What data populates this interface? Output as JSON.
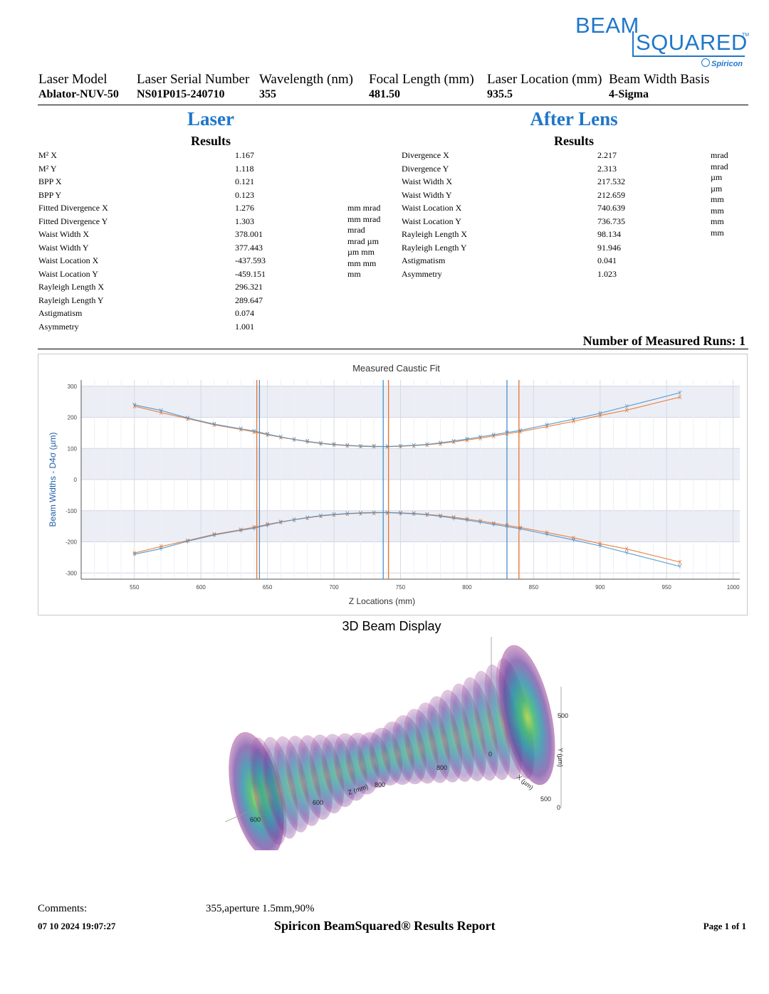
{
  "logo": {
    "line1": "BEAM",
    "line2": "SQUARED",
    "tm": "TM",
    "brand": "Spiricon"
  },
  "header": {
    "fields": [
      {
        "label": "Laser Model",
        "value": "Ablator-NUV-50"
      },
      {
        "label": "Laser Serial Number",
        "value": "NS01P015-240710"
      },
      {
        "label": "Wavelength (nm)",
        "value": "355"
      },
      {
        "label": "Focal Length (mm)",
        "value": "481.50"
      },
      {
        "label": "Laser Location (mm)",
        "value": "935.5"
      },
      {
        "label": "Beam Width Basis",
        "value": "4-Sigma"
      }
    ]
  },
  "laser": {
    "title": "Laser",
    "results_title": "Results",
    "rows": [
      {
        "name": "M² X",
        "value": "1.167"
      },
      {
        "name": "M² Y",
        "value": "1.118"
      },
      {
        "name": "BPP X",
        "value": "0.121"
      },
      {
        "name": "BPP Y",
        "value": "0.123"
      },
      {
        "name": "Fitted Divergence X",
        "value": "1.276"
      },
      {
        "name": "Fitted Divergence Y",
        "value": "1.303"
      },
      {
        "name": "Waist Width X",
        "value": "378.001"
      },
      {
        "name": "Waist Width Y",
        "value": "377.443"
      },
      {
        "name": "Waist Location X",
        "value": "-437.593"
      },
      {
        "name": "Waist Location Y",
        "value": "-459.151"
      },
      {
        "name": "Rayleigh Length X",
        "value": "296.321"
      },
      {
        "name": "Rayleigh Length Y",
        "value": "289.647"
      },
      {
        "name": "Astigmatism",
        "value": "0.074"
      },
      {
        "name": "Asymmetry",
        "value": "1.001"
      }
    ],
    "units": "mm mrad\nmm mrad\nmrad\nmrad µm\nµm mm\nmm mm\nmm"
  },
  "after_lens": {
    "title": "After Lens",
    "results_title": "Results",
    "rows": [
      {
        "name": "Divergence X",
        "value": "2.217"
      },
      {
        "name": "Divergence Y",
        "value": "2.313"
      },
      {
        "name": "Waist Width X",
        "value": "217.532"
      },
      {
        "name": "Waist Width Y",
        "value": "212.659"
      },
      {
        "name": "Waist Location X",
        "value": "740.639"
      },
      {
        "name": "Waist Location Y",
        "value": "736.735"
      },
      {
        "name": "Rayleigh Length X",
        "value": "98.134"
      },
      {
        "name": "Rayleigh Length Y",
        "value": "91.946"
      },
      {
        "name": "Astigmatism",
        "value": "0.041"
      },
      {
        "name": "Asymmetry",
        "value": "1.023"
      }
    ],
    "units": "mrad\nmrad\nµm\nµm\nmm\nmm\nmm\nmm"
  },
  "runs_text": "Number of Measured Runs: 1",
  "chart_data": {
    "type": "scatter",
    "title": "Measured Caustic Fit",
    "xlabel": "Z Locations (mm)",
    "ylabel": "Beam Widths - D4σ (µm)",
    "xlim": [
      510,
      1005
    ],
    "ylim": [
      -320,
      320
    ],
    "xticks": [
      550,
      600,
      650,
      700,
      750,
      800,
      850,
      900,
      950,
      1000
    ],
    "yticks": [
      300,
      200,
      100,
      0,
      -100,
      -200,
      -300
    ],
    "x_values": [
      550,
      570,
      590,
      610,
      630,
      640,
      650,
      660,
      670,
      680,
      690,
      700,
      710,
      720,
      730,
      740,
      750,
      760,
      770,
      780,
      790,
      800,
      810,
      820,
      830,
      840,
      860,
      880,
      900,
      920,
      960
    ],
    "series": [
      {
        "name": "X",
        "color": "#e8742a",
        "marker": "X",
        "values": [
          236,
          215,
          196,
          176,
          161,
          153,
          144,
          136,
          129,
          123,
          117,
          113,
          110,
          108,
          107,
          106,
          107,
          109,
          112,
          116,
          121,
          127,
          133,
          140,
          147,
          154,
          170,
          187,
          206,
          223,
          265
        ]
      },
      {
        "name": "Y",
        "color": "#4a90c8",
        "marker": "Y",
        "values": [
          240,
          222,
          198,
          178,
          163,
          156,
          146,
          137,
          129,
          122,
          116,
          112,
          109,
          107,
          106,
          106,
          108,
          110,
          113,
          118,
          124,
          130,
          137,
          144,
          151,
          158,
          176,
          194,
          213,
          235,
          279
        ]
      }
    ],
    "vlines": [
      {
        "x": 642,
        "color": "#e8742a"
      },
      {
        "x": 644,
        "color": "#4a90c8"
      },
      {
        "x": 737,
        "color": "#4a90c8"
      },
      {
        "x": 741,
        "color": "#e8742a"
      },
      {
        "x": 830,
        "color": "#4a90c8"
      },
      {
        "x": 839,
        "color": "#e8742a"
      }
    ],
    "grid": true,
    "legend": "none"
  },
  "beam3d": {
    "title": "3D Beam Display",
    "labels": [
      "500",
      "Y (µm)",
      "0",
      "X (µm)",
      "500",
      "0",
      "800",
      "Z (mm)",
      "800",
      "600",
      "600"
    ]
  },
  "footer": {
    "comments_label": "Comments:",
    "comments_value": "355,aperture 1.5mm,90%",
    "date": "07 10 2024 19:07:27",
    "report_title": "Spiricon BeamSquared® Results Report",
    "page": "Page 1 of 1"
  }
}
